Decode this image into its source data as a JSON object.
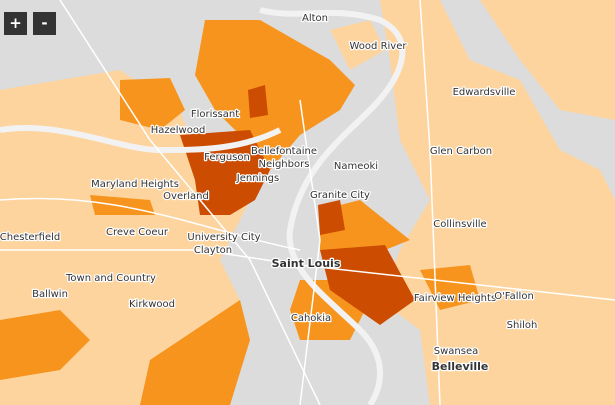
{
  "controls": {
    "zoom_in": "+",
    "zoom_out": "-"
  },
  "places": [
    "Alton",
    "Wood River",
    "Edwardsville",
    "Florissant",
    "Hazelwood",
    "Ferguson",
    "Bellefontaine",
    "Neighbors",
    "Jennings",
    "Nameoki",
    "Glen Carbon",
    "Maryland Heights",
    "Overland",
    "Granite City",
    "Collinsville",
    "Chesterfield",
    "Creve Coeur",
    "University City",
    "Clayton",
    "Saint Louis",
    "Town and Country",
    "Ballwin",
    "Fairview Heights",
    "O'Fallon",
    "Kirkwood",
    "Cahokia",
    "Shiloh",
    "Swansea",
    "Belleville"
  ]
}
